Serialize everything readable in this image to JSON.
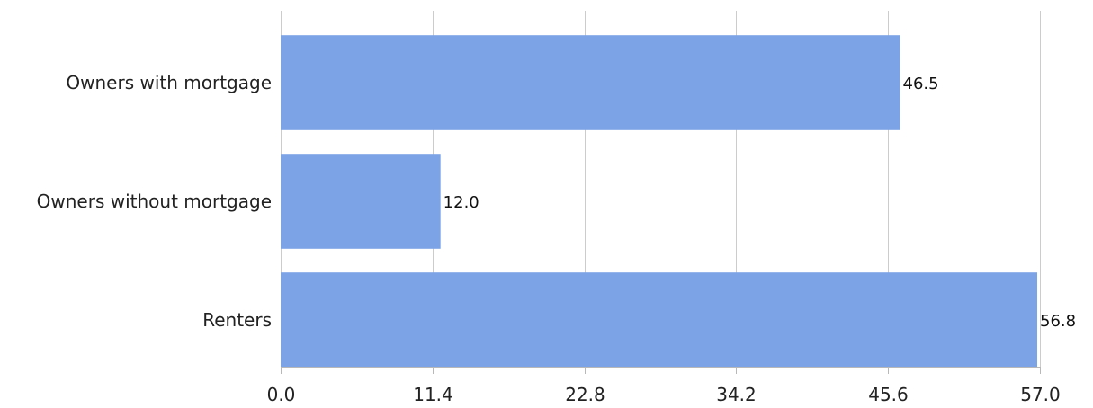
{
  "chart_data": {
    "type": "bar",
    "orientation": "horizontal",
    "categories": [
      "Owners with mortgage",
      "Owners without mortgage",
      "Renters"
    ],
    "values": [
      46.5,
      12.0,
      56.8
    ],
    "value_labels": [
      "46.5",
      "12.0",
      "56.8"
    ],
    "xlim": [
      0,
      57.0
    ],
    "x_ticks": [
      0.0,
      11.4,
      22.8,
      34.2,
      45.6,
      57.0
    ],
    "x_tick_labels": [
      "0.0",
      "11.4",
      "22.8",
      "34.2",
      "45.6",
      "57.0"
    ],
    "title": "",
    "xlabel": "",
    "ylabel": "",
    "grid": "vertical",
    "legend": "none",
    "bar_color": "#7ba3e6"
  }
}
